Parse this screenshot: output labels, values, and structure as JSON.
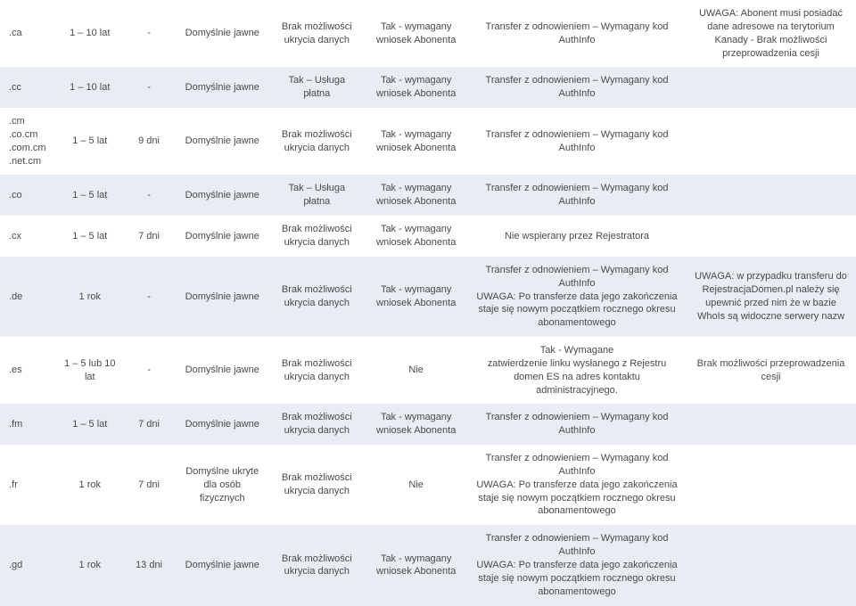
{
  "rows": [
    {
      "domain": ".ca",
      "period": "1 – 10 lat",
      "grace": "-",
      "whois": "Domyślnie jawne",
      "opt": "Brak możliwości ukrycia danych",
      "owner": "Tak - wymagany wniosek Abonenta",
      "transfer": "Transfer z odnowieniem – Wymagany kod AuthInfo",
      "notes": "UWAGA: Abonent musi posiadać dane adresowe na terytorium Kanady - Brak możliwości przeprowadzenia cesji"
    },
    {
      "domain": ".cc",
      "period": "1 – 10 lat",
      "grace": "-",
      "whois": "Domyślnie jawne",
      "opt": "Tak – Usługa płatna",
      "owner": "Tak - wymagany wniosek Abonenta",
      "transfer": "Transfer z odnowieniem – Wymagany kod AuthInfo",
      "notes": ""
    },
    {
      "domain": ".cm\n.co.cm\n.com.cm\n.net.cm",
      "period": "1 – 5 lat",
      "grace": "9 dni",
      "whois": "Domyślnie jawne",
      "opt": "Brak możliwości ukrycia danych",
      "owner": "Tak - wymagany wniosek Abonenta",
      "transfer": "Transfer z odnowieniem – Wymagany kod AuthInfo",
      "notes": ""
    },
    {
      "domain": ".co",
      "period": "1 – 5 lat",
      "grace": "-",
      "whois": "Domyślnie jawne",
      "opt": "Tak – Usługa płatna",
      "owner": "Tak - wymagany wniosek Abonenta",
      "transfer": "Transfer z odnowieniem – Wymagany kod AuthInfo",
      "notes": ""
    },
    {
      "domain": ".cx",
      "period": "1 – 5 lat",
      "grace": "7 dni",
      "whois": "Domyślnie jawne",
      "opt": "Brak możliwości ukrycia danych",
      "owner": "Tak - wymagany wniosek Abonenta",
      "transfer": "Nie wspierany przez Rejestratora",
      "notes": ""
    },
    {
      "domain": ".de",
      "period": "1 rok",
      "grace": "-",
      "whois": "Domyślnie jawne",
      "opt": "Brak możliwości ukrycia danych",
      "owner": "Tak - wymagany wniosek Abonenta",
      "transfer": "Transfer z odnowieniem – Wymagany kod AuthInfo\nUWAGA: Po transferze data jego zakończenia staje się nowym początkiem rocznego okresu abonamentowego",
      "notes": "UWAGA: w przypadku transferu do RejestracjaDomen.pl należy się upewnić przed nim że w bazie WhoIs są widoczne serwery nazw"
    },
    {
      "domain": ".es",
      "period": "1 – 5 lub 10 lat",
      "grace": "-",
      "whois": "Domyślnie jawne",
      "opt": "Brak możliwości ukrycia danych",
      "owner": "Nie",
      "transfer": "Tak - Wymagane\nzatwierdzenie linku wysłanego z Rejestru domen ES na adres kontaktu administracyjnego.",
      "notes": "Brak możliwości przeprowadzenia cesji"
    },
    {
      "domain": ".fm",
      "period": "1 – 5 lat",
      "grace": "7 dni",
      "whois": "Domyślnie jawne",
      "opt": "Brak możliwości ukrycia danych",
      "owner": "Tak - wymagany wniosek Abonenta",
      "transfer": "Transfer z odnowieniem – Wymagany kod AuthInfo",
      "notes": ""
    },
    {
      "domain": ".fr",
      "period": "1 rok",
      "grace": "7 dni",
      "whois": "Domyślne ukryte dla osób fizycznych",
      "opt": "Brak możliwości ukrycia danych",
      "owner": "Nie",
      "transfer": "Transfer z odnowieniem – Wymagany kod AuthInfo\nUWAGA: Po transferze data jego zakończenia staje się nowym początkiem rocznego okresu abonamentowego",
      "notes": ""
    },
    {
      "domain": ".gd",
      "period": "1 rok",
      "grace": "13 dni",
      "whois": "Domyślnie jawne",
      "opt": "Brak możliwości ukrycia danych",
      "owner": "Tak - wymagany wniosek Abonenta",
      "transfer": "Transfer z odnowieniem – Wymagany kod AuthInfo\nUWAGA: Po transferze data jego zakończenia staje się nowym początkiem rocznego okresu abonamentowego",
      "notes": ""
    }
  ]
}
